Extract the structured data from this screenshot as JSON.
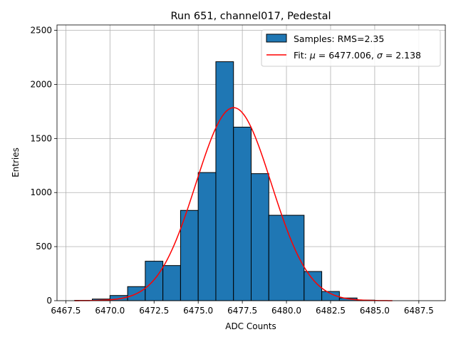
{
  "chart_data": {
    "type": "bar",
    "title": "Run 651, channel017, Pedestal",
    "xlabel": "ADC Counts",
    "ylabel": "Entries",
    "xlim": [
      6467.0,
      6489.0
    ],
    "ylim": [
      0,
      2550
    ],
    "x_ticks": [
      6467.5,
      6470.0,
      6472.5,
      6475.0,
      6477.5,
      6480.0,
      6482.5,
      6485.0,
      6487.5
    ],
    "x_tick_labels": [
      "6467.5",
      "6470.0",
      "6472.5",
      "6475.0",
      "6477.5",
      "6480.0",
      "6482.5",
      "6485.0",
      "6487.5"
    ],
    "y_ticks": [
      0,
      500,
      1000,
      1500,
      2000,
      2500
    ],
    "y_tick_labels": [
      "0",
      "500",
      "1000",
      "1500",
      "2000",
      "2500"
    ],
    "grid": true,
    "legend_position": "top-right",
    "histogram": {
      "name": "Samples: RMS=2.35",
      "color": "#1f77b4",
      "edge_color": "#000000",
      "bins": [
        {
          "start": 6468,
          "end": 6469,
          "count": 3
        },
        {
          "start": 6469,
          "end": 6470,
          "count": 15
        },
        {
          "start": 6470,
          "end": 6471,
          "count": 48
        },
        {
          "start": 6471,
          "end": 6472,
          "count": 130
        },
        {
          "start": 6472,
          "end": 6473,
          "count": 365
        },
        {
          "start": 6473,
          "end": 6474,
          "count": 325
        },
        {
          "start": 6474,
          "end": 6475,
          "count": 835
        },
        {
          "start": 6475,
          "end": 6476,
          "count": 1185
        },
        {
          "start": 6476,
          "end": 6477,
          "count": 2210
        },
        {
          "start": 6477,
          "end": 6478,
          "count": 1605
        },
        {
          "start": 6478,
          "end": 6479,
          "count": 1175
        },
        {
          "start": 6479,
          "end": 6481,
          "count": 790
        },
        {
          "start": 6481,
          "end": 6482,
          "count": 270
        },
        {
          "start": 6482,
          "end": 6483,
          "count": 85
        },
        {
          "start": 6483,
          "end": 6484,
          "count": 25
        },
        {
          "start": 6484,
          "end": 6485,
          "count": 5
        }
      ]
    },
    "fit": {
      "label_prefix": "Fit: ",
      "mu_symbol": "μ",
      "mu_value": "6477.006",
      "sigma_symbol": "σ",
      "sigma_value": "2.138",
      "mu": 6477.006,
      "sigma": 2.138,
      "amplitude": 1785,
      "x_start": 6468.0,
      "x_end": 6486.0,
      "color": "#ff0000"
    }
  }
}
